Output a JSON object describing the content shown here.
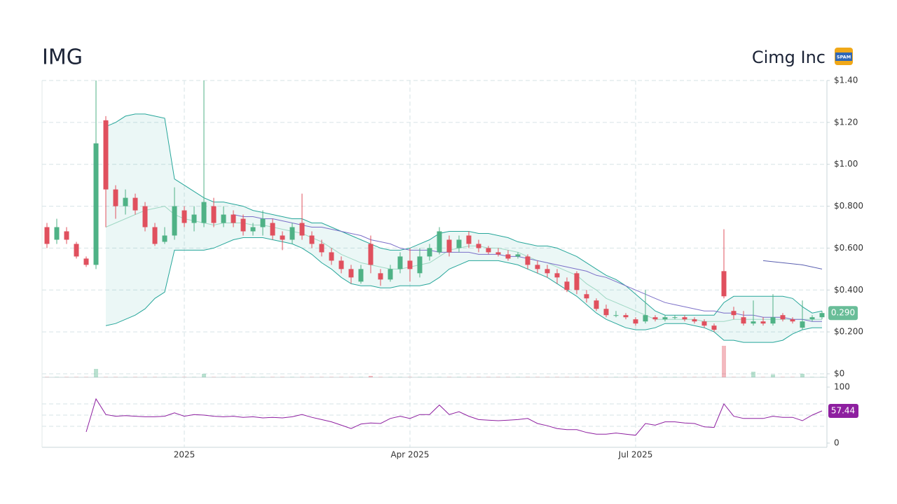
{
  "chart_data": {
    "type": "candlestick",
    "title": "IMG",
    "subtitle": "Cimg Inc",
    "badge": "SPAM",
    "categories": [
      null,
      null,
      null,
      null,
      null,
      null,
      null,
      null,
      null,
      null,
      null,
      null,
      null,
      null,
      "2025",
      null,
      null,
      null,
      null,
      null,
      null,
      null,
      null,
      null,
      null,
      null,
      null,
      null,
      null,
      null,
      null,
      null,
      null,
      null,
      null,
      null,
      null,
      "Apr 2025",
      null,
      null,
      null,
      null,
      null,
      null,
      null,
      null,
      null,
      null,
      null,
      null,
      null,
      null,
      null,
      null,
      null,
      null,
      null,
      null,
      null,
      null,
      "Jul 2025",
      null,
      null,
      null,
      null,
      null,
      null,
      null,
      null,
      null,
      null,
      null,
      null,
      null,
      null,
      null,
      null,
      null,
      null,
      null
    ],
    "open": [
      0.7,
      0.64,
      0.68,
      0.62,
      0.55,
      0.52,
      1.21,
      0.88,
      0.8,
      0.84,
      0.8,
      0.7,
      0.63,
      0.66,
      0.78,
      0.72,
      0.72,
      0.8,
      0.72,
      0.76,
      0.74,
      0.68,
      0.7,
      0.72,
      0.66,
      0.64,
      0.72,
      0.66,
      0.62,
      0.58,
      0.54,
      0.5,
      0.44,
      0.62,
      0.48,
      0.45,
      0.5,
      0.54,
      0.48,
      0.56,
      0.58,
      0.64,
      0.6,
      0.66,
      0.62,
      0.6,
      0.58,
      0.57,
      0.56,
      0.56,
      0.52,
      0.5,
      0.48,
      0.44,
      0.48,
      0.38,
      0.35,
      0.31,
      0.28,
      0.28,
      0.26,
      0.25,
      0.27,
      0.26,
      0.27,
      0.27,
      0.26,
      0.25,
      0.23,
      0.49,
      0.3,
      0.27,
      0.24,
      0.25,
      0.24,
      0.28,
      0.26,
      0.22,
      0.26,
      0.27
    ],
    "high": [
      0.72,
      0.74,
      0.7,
      0.63,
      0.56,
      1.4,
      1.23,
      0.9,
      0.88,
      0.86,
      0.82,
      0.72,
      0.7,
      0.89,
      0.8,
      0.8,
      1.4,
      0.84,
      0.8,
      0.78,
      0.76,
      0.72,
      0.78,
      0.74,
      0.68,
      0.72,
      0.86,
      0.68,
      0.64,
      0.6,
      0.56,
      0.52,
      0.52,
      0.66,
      0.5,
      0.52,
      0.58,
      0.6,
      0.6,
      0.62,
      0.7,
      0.66,
      0.66,
      0.68,
      0.64,
      0.61,
      0.6,
      0.59,
      0.58,
      0.57,
      0.54,
      0.52,
      0.5,
      0.46,
      0.49,
      0.4,
      0.36,
      0.33,
      0.3,
      0.29,
      0.27,
      0.4,
      0.28,
      0.28,
      0.28,
      0.28,
      0.27,
      0.26,
      0.24,
      0.69,
      0.32,
      0.3,
      0.35,
      0.27,
      0.38,
      0.29,
      0.27,
      0.35,
      0.28,
      0.3
    ],
    "low": [
      0.6,
      0.62,
      0.62,
      0.55,
      0.51,
      0.5,
      0.7,
      0.74,
      0.76,
      0.76,
      0.68,
      0.61,
      0.62,
      0.64,
      0.7,
      0.68,
      0.7,
      0.7,
      0.7,
      0.7,
      0.66,
      0.66,
      0.66,
      0.64,
      0.59,
      0.62,
      0.64,
      0.6,
      0.56,
      0.52,
      0.48,
      0.43,
      0.43,
      0.48,
      0.42,
      0.44,
      0.48,
      0.44,
      0.46,
      0.54,
      0.57,
      0.56,
      0.58,
      0.6,
      0.58,
      0.57,
      0.56,
      0.54,
      0.55,
      0.5,
      0.48,
      0.46,
      0.43,
      0.39,
      0.38,
      0.34,
      0.3,
      0.27,
      0.27,
      0.26,
      0.23,
      0.24,
      0.25,
      0.25,
      0.26,
      0.25,
      0.24,
      0.22,
      0.2,
      0.36,
      0.26,
      0.23,
      0.23,
      0.23,
      0.23,
      0.25,
      0.24,
      0.21,
      0.25,
      0.26
    ],
    "close": [
      0.62,
      0.7,
      0.64,
      0.56,
      0.52,
      1.1,
      0.88,
      0.8,
      0.84,
      0.78,
      0.7,
      0.62,
      0.66,
      0.8,
      0.72,
      0.76,
      0.82,
      0.72,
      0.76,
      0.72,
      0.68,
      0.7,
      0.74,
      0.66,
      0.64,
      0.7,
      0.66,
      0.62,
      0.58,
      0.54,
      0.5,
      0.46,
      0.5,
      0.52,
      0.45,
      0.5,
      0.56,
      0.5,
      0.56,
      0.6,
      0.68,
      0.58,
      0.64,
      0.62,
      0.6,
      0.58,
      0.57,
      0.55,
      0.57,
      0.52,
      0.5,
      0.48,
      0.46,
      0.4,
      0.4,
      0.36,
      0.31,
      0.28,
      0.28,
      0.27,
      0.24,
      0.28,
      0.26,
      0.27,
      0.27,
      0.26,
      0.25,
      0.23,
      0.21,
      0.37,
      0.28,
      0.24,
      0.25,
      0.24,
      0.27,
      0.26,
      0.25,
      0.25,
      0.27,
      0.29
    ],
    "up_color": "#4fb286",
    "down_color": "#e0505e",
    "last_price": {
      "value": 0.29,
      "label": "0.290"
    },
    "ylim": [
      0,
      1.4
    ],
    "yticks": [
      {
        "value": 0,
        "label": "$0"
      },
      {
        "value": 0.2,
        "label": "$0.200"
      },
      {
        "value": 0.4,
        "label": "$0.400"
      },
      {
        "value": 0.6,
        "label": "$0.600"
      },
      {
        "value": 0.8,
        "label": "$0.800"
      },
      {
        "value": 1.0,
        "label": "$1.00"
      },
      {
        "value": 1.2,
        "label": "$1.20"
      },
      {
        "value": 1.4,
        "label": "$1.40"
      }
    ],
    "grid": true,
    "bands": {
      "color": "#26a69a",
      "upper": [
        null,
        null,
        null,
        null,
        null,
        null,
        1.18,
        1.2,
        1.23,
        1.24,
        1.24,
        1.23,
        1.22,
        0.93,
        0.9,
        0.87,
        0.84,
        0.82,
        0.82,
        0.81,
        0.8,
        0.78,
        0.77,
        0.76,
        0.75,
        0.74,
        0.74,
        0.72,
        0.72,
        0.7,
        0.68,
        0.66,
        0.64,
        0.62,
        0.6,
        0.59,
        0.59,
        0.6,
        0.62,
        0.64,
        0.67,
        0.68,
        0.68,
        0.68,
        0.67,
        0.67,
        0.66,
        0.65,
        0.63,
        0.62,
        0.61,
        0.61,
        0.6,
        0.58,
        0.56,
        0.53,
        0.5,
        0.47,
        0.45,
        0.42,
        0.38,
        0.34,
        0.3,
        0.28,
        0.28,
        0.28,
        0.28,
        0.28,
        0.28,
        0.34,
        0.37,
        0.37,
        0.37,
        0.37,
        0.37,
        0.37,
        0.36,
        0.32,
        0.29,
        0.3
      ],
      "lower": [
        null,
        null,
        null,
        null,
        null,
        null,
        0.23,
        0.24,
        0.26,
        0.28,
        0.31,
        0.36,
        0.39,
        0.59,
        0.59,
        0.59,
        0.59,
        0.6,
        0.62,
        0.64,
        0.65,
        0.65,
        0.65,
        0.64,
        0.63,
        0.62,
        0.6,
        0.57,
        0.53,
        0.5,
        0.46,
        0.43,
        0.42,
        0.42,
        0.41,
        0.41,
        0.42,
        0.42,
        0.42,
        0.43,
        0.46,
        0.5,
        0.52,
        0.54,
        0.54,
        0.54,
        0.54,
        0.53,
        0.52,
        0.5,
        0.48,
        0.46,
        0.43,
        0.4,
        0.37,
        0.33,
        0.29,
        0.26,
        0.24,
        0.22,
        0.21,
        0.21,
        0.22,
        0.24,
        0.24,
        0.24,
        0.23,
        0.22,
        0.2,
        0.16,
        0.16,
        0.15,
        0.15,
        0.15,
        0.15,
        0.16,
        0.19,
        0.21,
        0.22,
        0.22
      ],
      "middle": [
        null,
        null,
        null,
        null,
        null,
        null,
        0.7,
        0.72,
        0.74,
        0.76,
        0.78,
        0.79,
        0.8,
        0.76,
        0.74,
        0.73,
        0.72,
        0.71,
        0.72,
        0.72,
        0.72,
        0.71,
        0.71,
        0.7,
        0.69,
        0.68,
        0.67,
        0.65,
        0.63,
        0.6,
        0.57,
        0.55,
        0.53,
        0.52,
        0.51,
        0.5,
        0.5,
        0.51,
        0.52,
        0.53,
        0.56,
        0.59,
        0.6,
        0.61,
        0.61,
        0.6,
        0.6,
        0.59,
        0.58,
        0.56,
        0.54,
        0.53,
        0.51,
        0.49,
        0.47,
        0.43,
        0.4,
        0.36,
        0.34,
        0.32,
        0.3,
        0.28,
        0.26,
        0.26,
        0.26,
        0.26,
        0.26,
        0.25,
        0.25,
        0.25,
        0.26,
        0.26,
        0.26,
        0.26,
        0.26,
        0.26,
        0.26,
        0.26,
        0.26,
        0.26
      ]
    },
    "moving_averages": [
      {
        "color": "#7b6fc8",
        "values": [
          null,
          null,
          null,
          null,
          null,
          null,
          null,
          null,
          null,
          null,
          null,
          null,
          null,
          null,
          null,
          null,
          null,
          null,
          null,
          0.76,
          0.75,
          0.75,
          0.74,
          0.74,
          0.73,
          0.72,
          0.71,
          0.7,
          0.7,
          0.69,
          0.68,
          0.67,
          0.66,
          0.64,
          0.63,
          0.62,
          0.6,
          0.59,
          0.59,
          0.59,
          0.58,
          0.58,
          0.58,
          0.58,
          0.57,
          0.57,
          0.57,
          0.56,
          0.56,
          0.55,
          0.54,
          0.53,
          0.52,
          0.51,
          0.5,
          0.49,
          0.47,
          0.46,
          0.44,
          0.42,
          0.4,
          0.38,
          0.36,
          0.34,
          0.33,
          0.32,
          0.31,
          0.3,
          0.3,
          0.29,
          0.29,
          0.28,
          0.28,
          0.27,
          0.27,
          0.27,
          0.26,
          0.26,
          0.25,
          0.25
        ]
      },
      {
        "color": "#5a5fb0",
        "values": [
          null,
          null,
          null,
          null,
          null,
          null,
          null,
          null,
          null,
          null,
          null,
          null,
          null,
          null,
          null,
          null,
          null,
          null,
          null,
          null,
          null,
          null,
          null,
          null,
          null,
          null,
          null,
          null,
          null,
          null,
          null,
          null,
          null,
          null,
          null,
          null,
          null,
          null,
          null,
          null,
          null,
          null,
          null,
          null,
          null,
          null,
          null,
          null,
          null,
          null,
          null,
          null,
          null,
          null,
          null,
          null,
          null,
          null,
          null,
          null,
          null,
          null,
          null,
          null,
          null,
          null,
          null,
          null,
          null,
          null,
          null,
          null,
          null,
          0.54,
          0.535,
          0.53,
          0.525,
          0.52,
          0.51,
          0.5
        ]
      }
    ],
    "volume": [
      0.5,
      0.5,
      0.5,
      0.5,
      0.5,
      12,
      0.5,
      0.5,
      0.5,
      0.5,
      0.5,
      0.5,
      0.5,
      0.5,
      0.5,
      0.5,
      5,
      0.5,
      0.5,
      0.5,
      0.5,
      0.5,
      0.5,
      0.5,
      0.5,
      0.5,
      0.5,
      0.5,
      0.5,
      0.5,
      0.5,
      0.5,
      0.5,
      2,
      0.5,
      0.5,
      0.5,
      0.5,
      0.5,
      0.5,
      0.5,
      0.5,
      0.5,
      0.5,
      0.5,
      0.5,
      0.5,
      0.5,
      0.5,
      0.5,
      0.5,
      0.5,
      0.5,
      0.5,
      0.5,
      0.5,
      0.5,
      0.5,
      0.5,
      0.5,
      0.5,
      0.5,
      0.5,
      0.5,
      0.5,
      0.5,
      0.5,
      0.5,
      0.5,
      45,
      0.5,
      0.5,
      8,
      0.5,
      4,
      0.5,
      0.5,
      5,
      0.5,
      0.5
    ],
    "rsi": {
      "color": "#8e1fa0",
      "ylim": [
        0,
        100
      ],
      "yticks": [
        0,
        100
      ],
      "levels": [
        30,
        50,
        70
      ],
      "values": [
        null,
        null,
        null,
        null,
        20,
        79,
        51,
        48,
        49,
        48,
        47,
        47,
        48,
        54,
        48,
        51,
        50,
        48,
        47,
        48,
        46,
        47,
        45,
        46,
        45,
        47,
        51,
        46,
        42,
        38,
        32,
        26,
        34,
        36,
        35,
        44,
        48,
        44,
        51,
        51,
        68,
        51,
        56,
        48,
        42,
        41,
        40,
        41,
        42,
        44,
        35,
        31,
        26,
        24,
        24,
        19,
        16,
        16,
        18,
        16,
        14,
        35,
        32,
        38,
        38,
        36,
        35,
        29,
        28,
        70,
        48,
        44,
        44,
        44,
        48,
        46,
        46,
        40,
        50,
        57.44
      ]
    }
  }
}
